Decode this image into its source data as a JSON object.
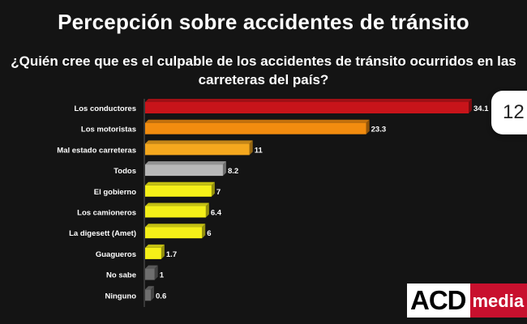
{
  "title": "Percepción sobre accidentes de tránsito",
  "subtitle_lines": [
    "¿Quién cree que es el culpable de los accidentes de tránsito ocurridos en las",
    "carreteras del país?"
  ],
  "badge": "12",
  "logo": {
    "acd": "ACD",
    "media": "media"
  },
  "colors": {
    "background": "#141414",
    "red": "#c8141a",
    "orange": "#f28c0f",
    "amber": "#f5a81e",
    "gray": "#b8b8b8",
    "yellow": "#f5f018",
    "dark_gray": "#6e6e6e"
  },
  "chart_data": {
    "type": "bar",
    "orientation": "horizontal",
    "title": "",
    "categories": [
      "Los conductores",
      "Los motoristas",
      "Mal estado carreteras",
      "Todos",
      "El gobierno",
      "Los camioneros",
      "La digesett (Amet)",
      "Guagueros",
      "No sabe",
      "Ninguno"
    ],
    "values": [
      34.1,
      23.3,
      11,
      8.2,
      7,
      6.4,
      6,
      1.7,
      1,
      0.6
    ],
    "value_labels": [
      "34.1",
      "23.3",
      "11",
      "8.2",
      "7",
      "6.4",
      "6",
      "1.7",
      "1",
      "0.6"
    ],
    "bar_colors": [
      "red",
      "orange",
      "amber",
      "gray",
      "yellow",
      "yellow",
      "yellow",
      "yellow",
      "dark_gray",
      "dark_gray"
    ],
    "xlim": [
      0,
      34.1
    ],
    "grid": false,
    "legend": "none"
  }
}
